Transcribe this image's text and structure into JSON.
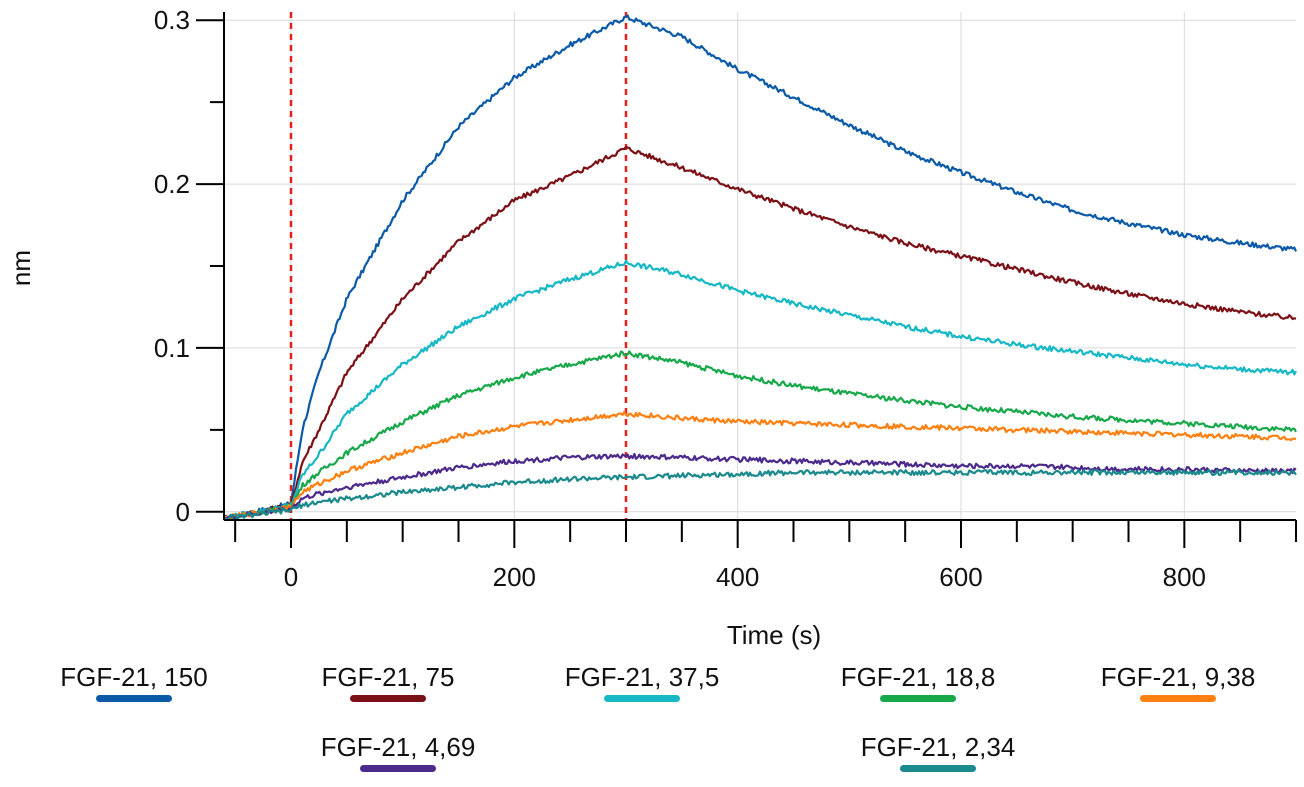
{
  "chart_data": {
    "type": "line",
    "title": "",
    "xlabel": "Time (s)",
    "ylabel": "nm",
    "xlim": [
      -60,
      900
    ],
    "ylim": [
      -0.005,
      0.305
    ],
    "x_ticks": [
      0,
      200,
      400,
      600,
      800
    ],
    "x_tick_labels": [
      "0",
      "200",
      "400",
      "600",
      "800"
    ],
    "x_minor_ticks": [
      -50,
      50,
      100,
      150,
      250,
      300,
      350,
      450,
      500,
      550,
      650,
      700,
      750,
      850,
      900
    ],
    "y_ticks": [
      0,
      0.1,
      0.2,
      0.3
    ],
    "y_tick_labels": [
      "0",
      "0.1",
      "0.2",
      "0.3"
    ],
    "y_minor_ticks": [
      0.05,
      0.15,
      0.25
    ],
    "grid": true,
    "legend_position": "bottom",
    "vertical_markers": [
      0,
      300
    ],
    "marker_color": "#e8201c",
    "x": [
      -60,
      0,
      10,
      25,
      50,
      100,
      150,
      200,
      250,
      300,
      350,
      400,
      450,
      500,
      550,
      600,
      650,
      700,
      750,
      800,
      850,
      900
    ],
    "series": [
      {
        "name": "FGF-21, 150",
        "color": "#0b5aa8",
        "values": [
          -0.004,
          0.005,
          0.05,
          0.085,
          0.13,
          0.19,
          0.235,
          0.265,
          0.285,
          0.302,
          0.29,
          0.27,
          0.253,
          0.236,
          0.22,
          0.207,
          0.195,
          0.184,
          0.176,
          0.169,
          0.164,
          0.16
        ]
      },
      {
        "name": "FGF-21, 75",
        "color": "#7b1116",
        "values": [
          -0.004,
          0.004,
          0.03,
          0.05,
          0.085,
          0.13,
          0.165,
          0.19,
          0.205,
          0.222,
          0.21,
          0.197,
          0.185,
          0.174,
          0.164,
          0.156,
          0.148,
          0.14,
          0.133,
          0.127,
          0.122,
          0.118
        ]
      },
      {
        "name": "FGF-21, 37,5",
        "color": "#17b8c6",
        "values": [
          -0.004,
          0.004,
          0.022,
          0.035,
          0.06,
          0.09,
          0.113,
          0.13,
          0.142,
          0.152,
          0.145,
          0.135,
          0.127,
          0.12,
          0.113,
          0.107,
          0.102,
          0.098,
          0.094,
          0.09,
          0.087,
          0.085
        ]
      },
      {
        "name": "FGF-21, 18,8",
        "color": "#17a84a",
        "values": [
          -0.004,
          0.003,
          0.016,
          0.024,
          0.036,
          0.055,
          0.071,
          0.082,
          0.09,
          0.097,
          0.091,
          0.083,
          0.077,
          0.072,
          0.068,
          0.064,
          0.061,
          0.058,
          0.056,
          0.054,
          0.052,
          0.05
        ]
      },
      {
        "name": "FGF-21, 9,38",
        "color": "#ff7f10",
        "values": [
          -0.004,
          0.003,
          0.012,
          0.017,
          0.025,
          0.036,
          0.046,
          0.052,
          0.056,
          0.06,
          0.057,
          0.055,
          0.054,
          0.053,
          0.052,
          0.051,
          0.05,
          0.049,
          0.048,
          0.047,
          0.046,
          0.045
        ]
      },
      {
        "name": "FGF-21, 4,69",
        "color": "#4b2a8c",
        "values": [
          -0.004,
          0.002,
          0.008,
          0.011,
          0.015,
          0.021,
          0.027,
          0.031,
          0.033,
          0.034,
          0.033,
          0.032,
          0.031,
          0.03,
          0.029,
          0.028,
          0.028,
          0.027,
          0.026,
          0.026,
          0.025,
          0.025
        ]
      },
      {
        "name": "FGF-21, 2,34",
        "color": "#1a8a8c",
        "values": [
          -0.004,
          0.001,
          0.004,
          0.006,
          0.008,
          0.012,
          0.015,
          0.018,
          0.02,
          0.021,
          0.022,
          0.023,
          0.024,
          0.024,
          0.024,
          0.024,
          0.024,
          0.024,
          0.024,
          0.024,
          0.024,
          0.024
        ]
      }
    ]
  }
}
